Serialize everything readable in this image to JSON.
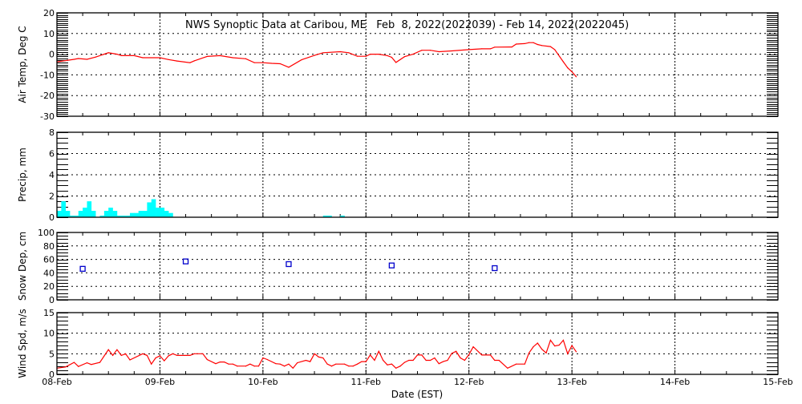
{
  "chart_data": [
    {
      "type": "line",
      "title": "NWS Synoptic Data at Caribou, ME   Feb  8, 2022(2022039) - Feb 14, 2022(2022045)",
      "ylabel": "Air Temp, Deg C",
      "ylim": [
        -30,
        20
      ],
      "yticks": [
        "20",
        "10",
        "0",
        "-10",
        "-20",
        "-30"
      ],
      "grid": true,
      "color": "#ff0000",
      "points": [
        [
          "2022-02-08T00:00",
          -3.7
        ],
        [
          "2022-02-08T02:00",
          -3.1
        ],
        [
          "2022-02-08T04:00",
          -2.5
        ],
        [
          "2022-02-08T05:00",
          -2.1
        ],
        [
          "2022-02-08T07:00",
          -2.5
        ],
        [
          "2022-02-08T09:00",
          -1.4
        ],
        [
          "2022-02-08T12:00",
          0.7
        ],
        [
          "2022-02-08T14:00",
          0
        ],
        [
          "2022-02-08T15:00",
          -0.7
        ],
        [
          "2022-02-08T18:00",
          -0.7
        ],
        [
          "2022-02-08T20:00",
          -1.7
        ],
        [
          "2022-02-09T00:00",
          -1.7
        ],
        [
          "2022-02-09T02:00",
          -2.6
        ],
        [
          "2022-02-09T04:00",
          -3.3
        ],
        [
          "2022-02-09T07:00",
          -4.1
        ],
        [
          "2022-02-09T08:00",
          -3.2
        ],
        [
          "2022-02-09T11:00",
          -1.1
        ],
        [
          "2022-02-09T14:00",
          -0.7
        ],
        [
          "2022-02-09T17:00",
          -1.7
        ],
        [
          "2022-02-09T20:00",
          -2.2
        ],
        [
          "2022-02-09T22:00",
          -4.1
        ],
        [
          "2022-02-10T00:00",
          -4.1
        ],
        [
          "2022-02-10T02:00",
          -4.4
        ],
        [
          "2022-02-10T04:00",
          -4.6
        ],
        [
          "2022-02-10T06:00",
          -6.3
        ],
        [
          "2022-02-10T09:00",
          -2.7
        ],
        [
          "2022-02-10T12:00",
          -0.6
        ],
        [
          "2022-02-10T14:00",
          0.7
        ],
        [
          "2022-02-10T18:00",
          1.2
        ],
        [
          "2022-02-10T20:00",
          0.7
        ],
        [
          "2022-02-10T22:00",
          -1.0
        ],
        [
          "2022-02-11T00:00",
          -1.0
        ],
        [
          "2022-02-11T01:00",
          0
        ],
        [
          "2022-02-11T03:00",
          0
        ],
        [
          "2022-02-11T05:00",
          -0.7
        ],
        [
          "2022-02-11T06:00",
          -1.5
        ],
        [
          "2022-02-11T07:00",
          -4.0
        ],
        [
          "2022-02-11T09:00",
          -1.2
        ],
        [
          "2022-02-11T11:00",
          0
        ],
        [
          "2022-02-11T13:00",
          1.9
        ],
        [
          "2022-02-11T15:00",
          1.9
        ],
        [
          "2022-02-11T17:00",
          1.2
        ],
        [
          "2022-02-11T20:00",
          1.6
        ],
        [
          "2022-02-12T00:00",
          2.2
        ],
        [
          "2022-02-12T03:00",
          2.6
        ],
        [
          "2022-02-12T05:00",
          2.6
        ],
        [
          "2022-02-12T06:00",
          3.4
        ],
        [
          "2022-02-12T10:00",
          3.5
        ],
        [
          "2022-02-12T11:00",
          4.9
        ],
        [
          "2022-02-12T13:00",
          5.1
        ],
        [
          "2022-02-12T14:00",
          5.6
        ],
        [
          "2022-02-12T15:00",
          5.6
        ],
        [
          "2022-02-12T16:00",
          4.7
        ],
        [
          "2022-02-12T17:00",
          4.2
        ],
        [
          "2022-02-12T19:00",
          3.7
        ],
        [
          "2022-02-12T20:00",
          2.2
        ],
        [
          "2022-02-12T22:00",
          -3.7
        ],
        [
          "2022-02-12T23:00",
          -6.6
        ],
        [
          "2022-02-13T00:00",
          -8.5
        ],
        [
          "2022-02-13T01:00",
          -10.9
        ]
      ]
    },
    {
      "type": "bar",
      "ylabel": "Precip, mm",
      "ylim": [
        0,
        8
      ],
      "yticks": [
        "8",
        "6",
        "4",
        "2",
        "0"
      ],
      "grid": true,
      "color": "#00ffff",
      "bars": [
        [
          "2022-02-08T00:00",
          0.6
        ],
        [
          "2022-02-08T01:00",
          1.5
        ],
        [
          "2022-02-08T02:00",
          0.6
        ],
        [
          "2022-02-08T03:00",
          0.15
        ],
        [
          "2022-02-08T04:00",
          0.15
        ],
        [
          "2022-02-08T05:00",
          0.6
        ],
        [
          "2022-02-08T06:00",
          0.9
        ],
        [
          "2022-02-08T07:00",
          1.5
        ],
        [
          "2022-02-08T08:00",
          0.6
        ],
        [
          "2022-02-08T10:00",
          0.15
        ],
        [
          "2022-02-08T11:00",
          0.6
        ],
        [
          "2022-02-08T12:00",
          0.9
        ],
        [
          "2022-02-08T13:00",
          0.6
        ],
        [
          "2022-02-08T14:00",
          0.15
        ],
        [
          "2022-02-08T15:00",
          0.15
        ],
        [
          "2022-02-08T16:00",
          0.15
        ],
        [
          "2022-02-08T17:00",
          0.4
        ],
        [
          "2022-02-08T18:00",
          0.4
        ],
        [
          "2022-02-08T19:00",
          0.6
        ],
        [
          "2022-02-08T20:00",
          0.6
        ],
        [
          "2022-02-08T21:00",
          1.4
        ],
        [
          "2022-02-08T22:00",
          1.7
        ],
        [
          "2022-02-08T23:00",
          0.9
        ],
        [
          "2022-02-09T00:00",
          0.9
        ],
        [
          "2022-02-09T01:00",
          0.6
        ],
        [
          "2022-02-09T02:00",
          0.4
        ],
        [
          "2022-02-10T14:00",
          0.15
        ],
        [
          "2022-02-10T15:00",
          0.15
        ],
        [
          "2022-02-10T18:00",
          0.15
        ]
      ]
    },
    {
      "type": "scatter",
      "ylabel": "Snow Dep, cm",
      "ylim": [
        0,
        100
      ],
      "yticks": [
        "100",
        "80",
        "60",
        "40",
        "20",
        "0"
      ],
      "grid": true,
      "color": "#0000cc",
      "marker": "open-square",
      "points": [
        [
          "2022-02-08T06:00",
          46
        ],
        [
          "2022-02-09T06:00",
          57
        ],
        [
          "2022-02-10T06:00",
          53
        ],
        [
          "2022-02-11T06:00",
          51
        ],
        [
          "2022-02-12T06:00",
          47
        ]
      ]
    },
    {
      "type": "line",
      "ylabel": "Wind Spd, m/s",
      "xlabel": "Date (EST)",
      "ylim": [
        0,
        15
      ],
      "yticks": [
        "15",
        "10",
        "5",
        "0"
      ],
      "xlim": [
        "2022-02-08T00:00",
        "2022-02-15T00:00"
      ],
      "xticks": [
        "08-Feb",
        "09-Feb",
        "10-Feb",
        "11-Feb",
        "12-Feb",
        "13-Feb",
        "14-Feb",
        "15-Feb"
      ],
      "grid": true,
      "color": "#ff0000",
      "points": [
        [
          "2022-02-08T00:00",
          1.5
        ],
        [
          "2022-02-08T02:00",
          1.8
        ],
        [
          "2022-02-08T04:00",
          2.9
        ],
        [
          "2022-02-08T05:00",
          1.9
        ],
        [
          "2022-02-08T07:00",
          2.8
        ],
        [
          "2022-02-08T08:00",
          2.4
        ],
        [
          "2022-02-08T10:00",
          2.9
        ],
        [
          "2022-02-08T12:00",
          6.0
        ],
        [
          "2022-02-08T13:00",
          4.6
        ],
        [
          "2022-02-08T14:00",
          6.0
        ],
        [
          "2022-02-08T15:00",
          4.6
        ],
        [
          "2022-02-08T16:00",
          5.0
        ],
        [
          "2022-02-08T17:00",
          3.5
        ],
        [
          "2022-02-08T20:00",
          5.0
        ],
        [
          "2022-02-08T21:00",
          4.6
        ],
        [
          "2022-02-08T22:00",
          2.5
        ],
        [
          "2022-02-08T23:00",
          4.0
        ],
        [
          "2022-02-09T00:00",
          4.5
        ],
        [
          "2022-02-09T01:00",
          3.3
        ],
        [
          "2022-02-09T02:00",
          4.5
        ],
        [
          "2022-02-09T03:00",
          5.0
        ],
        [
          "2022-02-09T04:00",
          4.6
        ],
        [
          "2022-02-09T07:00",
          4.6
        ],
        [
          "2022-02-09T08:00",
          5.0
        ],
        [
          "2022-02-09T10:00",
          5.0
        ],
        [
          "2022-02-09T11:00",
          3.6
        ],
        [
          "2022-02-09T13:00",
          2.6
        ],
        [
          "2022-02-09T14:00",
          3.0
        ],
        [
          "2022-02-09T15:00",
          3.0
        ],
        [
          "2022-02-09T16:00",
          2.5
        ],
        [
          "2022-02-09T17:00",
          2.5
        ],
        [
          "2022-02-09T18:00",
          2.0
        ],
        [
          "2022-02-09T20:00",
          2.0
        ],
        [
          "2022-02-09T21:00",
          2.5
        ],
        [
          "2022-02-09T22:00",
          2.0
        ],
        [
          "2022-02-09T23:00",
          2.0
        ],
        [
          "2022-02-10T00:00",
          4.0
        ],
        [
          "2022-02-10T01:00",
          3.6
        ],
        [
          "2022-02-10T03:00",
          2.6
        ],
        [
          "2022-02-10T04:00",
          2.5
        ],
        [
          "2022-02-10T05:00",
          2.0
        ],
        [
          "2022-02-10T06:00",
          2.5
        ],
        [
          "2022-02-10T07:00",
          1.5
        ],
        [
          "2022-02-10T08:00",
          2.8
        ],
        [
          "2022-02-10T10:00",
          3.4
        ],
        [
          "2022-02-10T11:00",
          3.1
        ],
        [
          "2022-02-10T12:00",
          5.0
        ],
        [
          "2022-02-10T13:00",
          4.2
        ],
        [
          "2022-02-10T14:00",
          4.0
        ],
        [
          "2022-02-10T15:00",
          2.5
        ],
        [
          "2022-02-10T16:00",
          2.0
        ],
        [
          "2022-02-10T17:00",
          2.5
        ],
        [
          "2022-02-10T19:00",
          2.5
        ],
        [
          "2022-02-10T20:00",
          2.0
        ],
        [
          "2022-02-10T21:00",
          2.0
        ],
        [
          "2022-02-10T22:00",
          2.5
        ],
        [
          "2022-02-10T23:00",
          3.1
        ],
        [
          "2022-02-11T00:00",
          3.1
        ],
        [
          "2022-02-11T01:00",
          4.7
        ],
        [
          "2022-02-11T02:00",
          3.4
        ],
        [
          "2022-02-11T03:00",
          5.6
        ],
        [
          "2022-02-11T04:00",
          3.4
        ],
        [
          "2022-02-11T05:00",
          2.3
        ],
        [
          "2022-02-11T06:00",
          2.5
        ],
        [
          "2022-02-11T07:00",
          1.5
        ],
        [
          "2022-02-11T08:00",
          2.0
        ],
        [
          "2022-02-11T09:00",
          2.9
        ],
        [
          "2022-02-11T10:00",
          3.4
        ],
        [
          "2022-02-11T11:00",
          3.4
        ],
        [
          "2022-02-11T12:00",
          4.7
        ],
        [
          "2022-02-11T13:00",
          4.7
        ],
        [
          "2022-02-11T14:00",
          3.4
        ],
        [
          "2022-02-11T15:00",
          3.4
        ],
        [
          "2022-02-11T16:00",
          4.0
        ],
        [
          "2022-02-11T17:00",
          2.6
        ],
        [
          "2022-02-11T18:00",
          3.1
        ],
        [
          "2022-02-11T19:00",
          3.4
        ],
        [
          "2022-02-11T20:00",
          5.1
        ],
        [
          "2022-02-11T21:00",
          5.6
        ],
        [
          "2022-02-11T22:00",
          4.0
        ],
        [
          "2022-02-11T23:00",
          3.4
        ],
        [
          "2022-02-12T00:00",
          4.8
        ],
        [
          "2022-02-12T01:00",
          6.7
        ],
        [
          "2022-02-12T03:00",
          4.7
        ],
        [
          "2022-02-12T05:00",
          4.7
        ],
        [
          "2022-02-12T06:00",
          3.4
        ],
        [
          "2022-02-12T07:00",
          3.4
        ],
        [
          "2022-02-12T09:00",
          1.5
        ],
        [
          "2022-02-12T11:00",
          2.5
        ],
        [
          "2022-02-12T13:00",
          2.5
        ],
        [
          "2022-02-12T14:00",
          5.2
        ],
        [
          "2022-02-12T15:00",
          6.7
        ],
        [
          "2022-02-12T16:00",
          7.6
        ],
        [
          "2022-02-12T17:00",
          6.1
        ],
        [
          "2022-02-12T18:00",
          5.2
        ],
        [
          "2022-02-12T19:00",
          8.3
        ],
        [
          "2022-02-12T20:00",
          6.9
        ],
        [
          "2022-02-12T21:00",
          7.1
        ],
        [
          "2022-02-12T22:00",
          8.3
        ],
        [
          "2022-02-12T23:00",
          5.0
        ],
        [
          "2022-02-13T00:00",
          7.0
        ],
        [
          "2022-02-13T01:00",
          5.5
        ]
      ]
    }
  ]
}
